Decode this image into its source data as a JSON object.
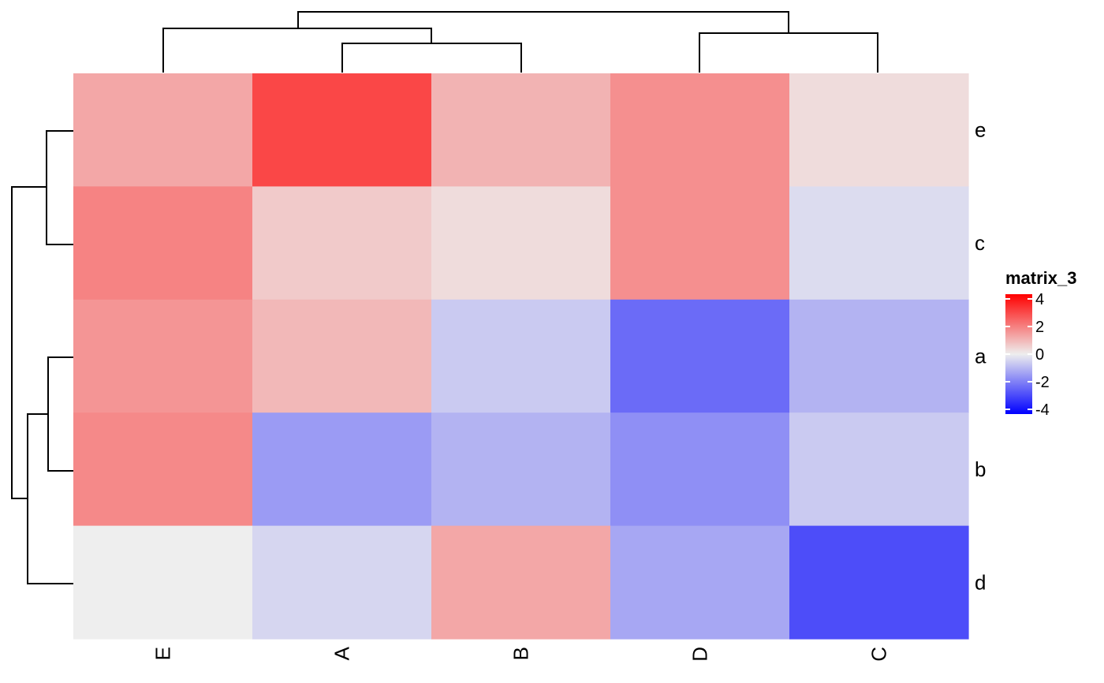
{
  "chart_data": {
    "type": "heatmap",
    "title": "",
    "columns": [
      "E",
      "A",
      "B",
      "D",
      "C"
    ],
    "rows": [
      "e",
      "c",
      "a",
      "b",
      "d"
    ],
    "values": [
      [
        1.2,
        2.8,
        1.0,
        1.6,
        0.3
      ],
      [
        1.8,
        0.6,
        0.3,
        1.6,
        -0.3
      ],
      [
        1.5,
        0.9,
        -0.6,
        -2.2,
        -1.0
      ],
      [
        1.7,
        -1.4,
        -1.0,
        -1.6,
        -0.6
      ],
      [
        0.0,
        -0.4,
        1.2,
        -1.2,
        -2.7
      ]
    ],
    "legend": {
      "title": "matrix_3",
      "ticks": [
        "4",
        "2",
        "0",
        "-2",
        "-4"
      ],
      "tick_values": [
        4,
        2,
        0,
        -2,
        -4
      ],
      "range": [
        -4,
        4
      ],
      "colors": {
        "low": "#0000ff",
        "mid": "#eeeeee",
        "high": "#ff0000"
      }
    },
    "column_dendrogram": "((E,(A,B)),(D,C))",
    "row_dendrogram": "((e,c),((a,b),d))",
    "grid": false,
    "legend_position": "right"
  }
}
